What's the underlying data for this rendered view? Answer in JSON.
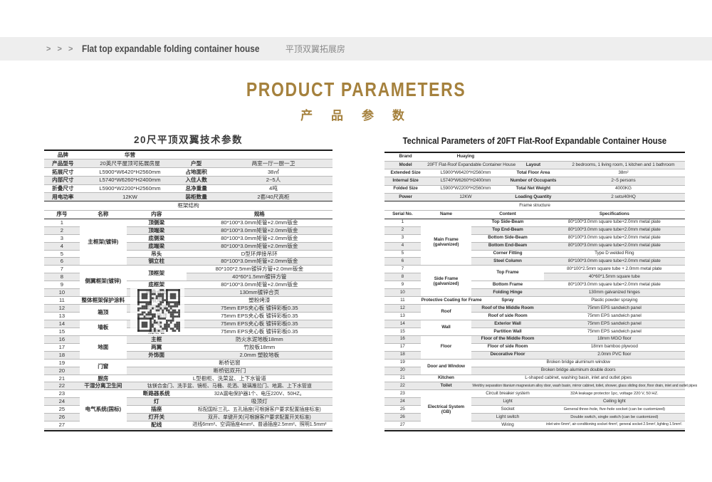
{
  "page_header": {
    "arrows": "> > >",
    "title_en": "Flat top expandable folding container house",
    "title_zh": "平顶双翼拓展房"
  },
  "main_title": {
    "en": "PRODUCT PARAMETERS",
    "zh": "产 品 参 数",
    "accent_color": "#a5813d"
  },
  "left_table": {
    "title": "20尺平顶双翼技术参数",
    "info_col_widths": [
      "13%",
      "33.5%",
      "12.5%",
      "41%"
    ],
    "frame_col_widths": [
      "12.3%",
      "16.3%",
      "20.7%",
      "50.7%"
    ],
    "info_rows": [
      [
        {
          "t": "品牌",
          "b": 1
        },
        {
          "t": "华营",
          "b": 1
        },
        {
          "t": ""
        },
        {
          "t": ""
        }
      ],
      [
        {
          "t": "产品型号",
          "b": 1
        },
        {
          "t": "20英尺平屋顶可拓展房屋"
        },
        {
          "t": "户型",
          "b": 1
        },
        {
          "t": "两室一厅一厨一卫"
        }
      ],
      [
        {
          "t": "拓展尺寸",
          "b": 1
        },
        {
          "t": "L5900*W6420*H2560mm"
        },
        {
          "t": "占地面积",
          "b": 1
        },
        {
          "t": "38㎡"
        }
      ],
      [
        {
          "t": "内部尺寸",
          "b": 1
        },
        {
          "t": "L5740*W6260*H2400mm"
        },
        {
          "t": "入住人数",
          "b": 1
        },
        {
          "t": "2~5人"
        }
      ],
      [
        {
          "t": "折叠尺寸",
          "b": 1
        },
        {
          "t": "L5900*W2200*H2560mm"
        },
        {
          "t": "总净重量",
          "b": 1
        },
        {
          "t": "4吨"
        }
      ],
      [
        {
          "t": "用电功率",
          "b": 1
        },
        {
          "t": "12KW"
        },
        {
          "t": "装柜数量",
          "b": 1
        },
        {
          "t": "2套/40尺高柜"
        }
      ]
    ],
    "banner": "框架结构",
    "header_row": [
      "序号",
      "名称",
      "内容",
      "规格"
    ],
    "rows": [
      [
        {
          "t": "1"
        },
        {
          "t": "主框架(镀锌)",
          "b": 1,
          "rs": 6
        },
        {
          "t": "顶侧梁",
          "b": 1
        },
        {
          "t": "80*100*3.0mm矩管+2.0mm钣金"
        }
      ],
      [
        {
          "t": "2"
        },
        {
          "t": "顶端梁",
          "b": 1
        },
        {
          "t": "80*100*3.0mm矩管+2.0mm钣金"
        }
      ],
      [
        {
          "t": "3"
        },
        {
          "t": "底侧梁",
          "b": 1
        },
        {
          "t": "80*100*3.0mm矩管+2.0mm钣金"
        }
      ],
      [
        {
          "t": "4"
        },
        {
          "t": "底端梁",
          "b": 1
        },
        {
          "t": "80*100*3.0mm矩管+2.0mm钣金"
        }
      ],
      [
        {
          "t": "5"
        },
        {
          "t": "吊头",
          "b": 1
        },
        {
          "t": "D型环焊接吊环"
        }
      ],
      [
        {
          "t": "6"
        },
        {
          "t": "钢立柱",
          "b": 1
        },
        {
          "t": "80*100*3.0mm矩管+2.0mm钣金"
        }
      ],
      [
        {
          "t": "7"
        },
        {
          "t": "侧翼框架(镀锌)",
          "b": 1,
          "rs": 4
        },
        {
          "t": "顶框架",
          "b": 1,
          "rs": 2
        },
        {
          "t": "80*100*2.5mm镀锌方管+2.0mm钣金"
        }
      ],
      [
        {
          "t": "8"
        },
        {
          "t": "40*60*1.5mm镀锌方管"
        }
      ],
      [
        {
          "t": "9"
        },
        {
          "t": "底框架",
          "b": 1
        },
        {
          "t": "80*100*3.0mm矩管+2.0mm钣金"
        }
      ],
      [
        {
          "t": "10"
        },
        {
          "t": "折叠合页",
          "b": 1
        },
        {
          "t": "130mm镀锌合页"
        }
      ],
      [
        {
          "t": "11"
        },
        {
          "t": "整体框架保护涂料",
          "b": 1
        },
        {
          "t": "喷漆",
          "b": 1
        },
        {
          "t": "塑粉烤漆"
        }
      ],
      [
        {
          "t": "12"
        },
        {
          "t": "箱顶",
          "b": 1,
          "rs": 2
        },
        {
          "t": "中间箱顶",
          "b": 1
        },
        {
          "t": "75mm EPS夹心板  镀锌彩板0.35"
        }
      ],
      [
        {
          "t": "13"
        },
        {
          "t": "两翼箱顶",
          "b": 1
        },
        {
          "t": "75mm EPS夹心板  镀锌彩板0.35"
        }
      ],
      [
        {
          "t": "14"
        },
        {
          "t": "墙板",
          "b": 1,
          "rs": 2
        },
        {
          "t": "外墙",
          "b": 1
        },
        {
          "t": "75mm EPS夹心板  镀锌彩板0.35"
        }
      ],
      [
        {
          "t": "15"
        },
        {
          "t": "隔断墙",
          "b": 1
        },
        {
          "t": "75mm EPS夹心板  镀锌彩板0.35"
        }
      ],
      [
        {
          "t": "16"
        },
        {
          "t": "地面",
          "b": 1,
          "rs": 3
        },
        {
          "t": "主框",
          "b": 1
        },
        {
          "t": "防火水泥地板18mm"
        }
      ],
      [
        {
          "t": "17"
        },
        {
          "t": "两翼",
          "b": 1
        },
        {
          "t": "竹胶板18mm"
        }
      ],
      [
        {
          "t": "18"
        },
        {
          "t": "外饰面",
          "b": 1
        },
        {
          "t": "2.0mm 塑胶地板"
        }
      ],
      [
        {
          "t": "19"
        },
        {
          "t": "门窗",
          "b": 1,
          "rs": 2
        },
        {
          "t": "断桥铝窗",
          "cs": 2
        }
      ],
      [
        {
          "t": "20"
        },
        {
          "t": "断桥铝双开门",
          "cs": 2
        }
      ],
      [
        {
          "t": "21"
        },
        {
          "t": "厨房",
          "b": 1
        },
        {
          "t": "L型橱柜、洗菜盆、上下水管道",
          "cs": 2
        }
      ],
      [
        {
          "t": "22"
        },
        {
          "t": "干湿分离卫生间",
          "b": 1
        },
        {
          "t": "钛镁合金门、洗手盆、镜柜、马桶、花洒、玻璃推拉门、地漏、上下水管道",
          "cs": 2,
          "cls": "sm"
        }
      ],
      [
        {
          "t": "23"
        },
        {
          "t": "电气系统(国标)",
          "b": 1,
          "rs": 5
        },
        {
          "t": "断路器系统",
          "b": 1
        },
        {
          "t": "32A漏电保护器1个、电压220V、50HZ。",
          "cls": "sm"
        }
      ],
      [
        {
          "t": "24"
        },
        {
          "t": "灯",
          "b": 1
        },
        {
          "t": "吸顶灯"
        }
      ],
      [
        {
          "t": "25"
        },
        {
          "t": "插座",
          "b": 1
        },
        {
          "t": "标配国标三孔、五孔插座(可根据客户要求配置插座标准)",
          "cls": "sm"
        }
      ],
      [
        {
          "t": "26"
        },
        {
          "t": "灯开关",
          "b": 1
        },
        {
          "t": "双开、单键开关(可根据客户要求配置开关标准)",
          "cls": "sm"
        }
      ],
      [
        {
          "t": "27"
        },
        {
          "t": "配线",
          "b": 1
        },
        {
          "t": "进线6mm²、空调插座4mm²、普通插座2.5mm²、照明1.5mm²",
          "cls": "sm"
        }
      ]
    ]
  },
  "right_table": {
    "title": "Technical Parameters of 20FT  Flat-Roof  Expandable Container House",
    "info_col_widths": [
      "14%",
      "26%",
      "19%",
      "41%"
    ],
    "frame_col_widths": [
      "12%",
      "17%",
      "24%",
      "47%"
    ],
    "info_rows": [
      [
        {
          "t": "Brand",
          "b": 1
        },
        {
          "t": "Huaying",
          "b": 1
        },
        {
          "t": ""
        },
        {
          "t": ""
        }
      ],
      [
        {
          "t": "Model",
          "b": 1
        },
        {
          "t": "20FT Flat-Roof Expandable Container House"
        },
        {
          "t": "Layout",
          "b": 1
        },
        {
          "t": "2 bedrooms, 1 living room, 1 kitchen and 1 bathroom"
        }
      ],
      [
        {
          "t": "Extended  Size",
          "b": 1
        },
        {
          "t": "L5900*W6420*H2560mm"
        },
        {
          "t": "Total Floor Area",
          "b": 1
        },
        {
          "t": "38m²"
        }
      ],
      [
        {
          "t": "Internal Size",
          "b": 1
        },
        {
          "t": "L5740*W6260*H2400mm"
        },
        {
          "t": "Number of Occupants",
          "b": 1
        },
        {
          "t": "2~5 persons"
        }
      ],
      [
        {
          "t": "Folded Size",
          "b": 1
        },
        {
          "t": "L5900*W2200*H2560mm"
        },
        {
          "t": "Total Net Weight",
          "b": 1
        },
        {
          "t": "4000KG"
        }
      ],
      [
        {
          "t": "Power",
          "b": 1
        },
        {
          "t": "12KW"
        },
        {
          "t": "Loading Quantity",
          "b": 1
        },
        {
          "t": "2 sets/40HQ"
        }
      ]
    ],
    "banner": "Frame structure",
    "header_row": [
      "Serial No.",
      "Name",
      "Content",
      "Specifications"
    ],
    "rows": [
      [
        {
          "t": "1"
        },
        {
          "t": "Main Frame\n(galvanized)",
          "b": 1,
          "rs": 6
        },
        {
          "t": "Top Side-Beam",
          "b": 1
        },
        {
          "t": "80*100*3.0mm square tube+2.0mm metal plate"
        }
      ],
      [
        {
          "t": "2"
        },
        {
          "t": "Top End-Beam",
          "b": 1
        },
        {
          "t": "80*100*3.0mm square tube+2.0mm metal plate"
        }
      ],
      [
        {
          "t": "3"
        },
        {
          "t": "Bottom Side-Beam",
          "b": 1
        },
        {
          "t": "80*100*3.0mm square tube+2.0mm metal plate"
        }
      ],
      [
        {
          "t": "4"
        },
        {
          "t": "Bottom End-Beam",
          "b": 1
        },
        {
          "t": "80*100*3.0mm square tube+2.0mm metal plate"
        }
      ],
      [
        {
          "t": "5"
        },
        {
          "t": "Corner Fitting",
          "b": 1
        },
        {
          "t": "Type D welded Ring"
        }
      ],
      [
        {
          "t": "6"
        },
        {
          "t": "Steel Column",
          "b": 1
        },
        {
          "t": "80*100*3.0mm square tube+2.0mm metal plate"
        }
      ],
      [
        {
          "t": "7"
        },
        {
          "t": "Side Frame\n(galvanized)",
          "b": 1,
          "rs": 4
        },
        {
          "t": "Top Frame",
          "b": 1,
          "rs": 2
        },
        {
          "t": "80*100*2.5mm square tube + 2.0mm metal plate"
        }
      ],
      [
        {
          "t": "8"
        },
        {
          "t": "40*60*1.5mm square tube"
        }
      ],
      [
        {
          "t": "9"
        },
        {
          "t": "Bottom Frame",
          "b": 1
        },
        {
          "t": "80*100*3.0mm square tube+2.0mm metal plate"
        }
      ],
      [
        {
          "t": "10"
        },
        {
          "t": "Folding Hinge",
          "b": 1
        },
        {
          "t": "130mm galvanized hinges"
        }
      ],
      [
        {
          "t": "11"
        },
        {
          "t": "Protective Coating for Frame",
          "b": 1
        },
        {
          "t": "Spray",
          "b": 1
        },
        {
          "t": "Plastic powder spraying"
        }
      ],
      [
        {
          "t": "12"
        },
        {
          "t": "Roof",
          "b": 1,
          "rs": 2
        },
        {
          "t": "Roof of the Middle  Room",
          "b": 1
        },
        {
          "t": "75mm EPS sandwich panel"
        }
      ],
      [
        {
          "t": "13"
        },
        {
          "t": "Roof of side  Room",
          "b": 1
        },
        {
          "t": "75mm EPS sandwich panel"
        }
      ],
      [
        {
          "t": "14"
        },
        {
          "t": "Wall",
          "b": 1,
          "rs": 2
        },
        {
          "t": "Exterior Wall",
          "b": 1
        },
        {
          "t": "75mm EPS sandwich panel"
        }
      ],
      [
        {
          "t": "15"
        },
        {
          "t": "Partition Wall",
          "b": 1
        },
        {
          "t": "75mm EPS sandwich panel"
        }
      ],
      [
        {
          "t": "16"
        },
        {
          "t": "Floor",
          "b": 1,
          "rs": 3
        },
        {
          "t": "Floor of the Middle  Room",
          "b": 1
        },
        {
          "t": "18mm  MGO floor"
        }
      ],
      [
        {
          "t": "17"
        },
        {
          "t": "Floor of side  Room",
          "b": 1
        },
        {
          "t": "18mm bamboo plywood"
        }
      ],
      [
        {
          "t": "18"
        },
        {
          "t": "Decorative Floor",
          "b": 1
        },
        {
          "t": "2.0mm PVC floor"
        }
      ],
      [
        {
          "t": "19"
        },
        {
          "t": "Door and Window",
          "b": 1,
          "rs": 2
        },
        {
          "t": "Broken bridge aluminum  window",
          "cs": 2
        }
      ],
      [
        {
          "t": "20"
        },
        {
          "t": "Broken bridge aluminum double doors",
          "cs": 2
        }
      ],
      [
        {
          "t": "21"
        },
        {
          "t": "Kitchen",
          "b": 1
        },
        {
          "t": "L-shaped cabinet, washing basin, inlet and outlet pipes",
          "cs": 2
        }
      ],
      [
        {
          "t": "22"
        },
        {
          "t": "Toilet",
          "b": 1
        },
        {
          "t": "Wet/dry separation titanium magnesium alloy door, wash basin, mirror cabinet, toilet, shower, glass sliding door, floor drain, inlet and outlet pipes",
          "cs": 2,
          "cls": "xs"
        }
      ],
      [
        {
          "t": "23"
        },
        {
          "t": "Electrical System\n(GB)",
          "b": 1,
          "rs": 5
        },
        {
          "t": "Circuit breaker system"
        },
        {
          "t": "32A leakage protector 1pc, voltage 220 V, 50 HZ.",
          "cls": "sm"
        }
      ],
      [
        {
          "t": "24"
        },
        {
          "t": "Light"
        },
        {
          "t": "Ceiling light"
        }
      ],
      [
        {
          "t": "25"
        },
        {
          "t": "Socket"
        },
        {
          "t": "General three-hole, five-hole socket (can be customized)",
          "cls": "sm"
        }
      ],
      [
        {
          "t": "26"
        },
        {
          "t": "Light switch"
        },
        {
          "t": "Double switch, single switch (can be customized)",
          "cls": "sm"
        }
      ],
      [
        {
          "t": "27"
        },
        {
          "t": "Wiring"
        },
        {
          "t": "inlet wire 6mm², air-conditioning socket 4mm², general socket 2.5mm², lighting 1.5mm².",
          "cls": "xs"
        }
      ]
    ]
  },
  "qr_code": {
    "label": "qr-watermark"
  }
}
